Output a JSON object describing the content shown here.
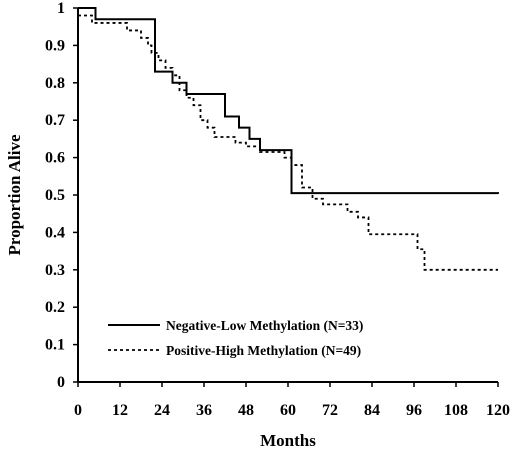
{
  "chart_data": {
    "type": "line",
    "xlabel": "Months",
    "ylabel": "Proportion Alive",
    "xlim": [
      0,
      120
    ],
    "ylim": [
      0,
      1
    ],
    "x_ticks": [
      0,
      12,
      24,
      36,
      48,
      60,
      72,
      84,
      96,
      108,
      120
    ],
    "y_ticks": [
      "0",
      "0.1",
      "0.2",
      "0.3",
      "0.4",
      "0.5",
      "0.6",
      "0.7",
      "0.8",
      "0.9",
      "1"
    ],
    "grid": false,
    "legend_position": "bottom-left",
    "series": [
      {
        "name": "Negative-Low Methylation (N=33)",
        "style": "solid",
        "color": "#000000",
        "step": true,
        "points": [
          [
            0,
            1.0
          ],
          [
            5,
            0.97
          ],
          [
            22,
            0.83
          ],
          [
            27,
            0.8
          ],
          [
            31,
            0.77
          ],
          [
            42,
            0.71
          ],
          [
            46,
            0.68
          ],
          [
            49,
            0.65
          ],
          [
            52,
            0.62
          ],
          [
            61,
            0.505
          ],
          [
            120,
            0.503
          ]
        ]
      },
      {
        "name": "Positive-High Methylation (N=49)",
        "style": "dotted",
        "color": "#000000",
        "step": true,
        "points": [
          [
            0,
            0.98
          ],
          [
            4,
            0.96
          ],
          [
            14,
            0.94
          ],
          [
            18,
            0.92
          ],
          [
            20,
            0.9
          ],
          [
            21,
            0.88
          ],
          [
            23,
            0.86
          ],
          [
            25,
            0.84
          ],
          [
            27,
            0.82
          ],
          [
            29,
            0.78
          ],
          [
            31,
            0.76
          ],
          [
            33,
            0.74
          ],
          [
            35,
            0.7
          ],
          [
            37,
            0.68
          ],
          [
            39,
            0.655
          ],
          [
            45,
            0.64
          ],
          [
            48,
            0.63
          ],
          [
            52,
            0.615
          ],
          [
            59,
            0.6
          ],
          [
            61,
            0.58
          ],
          [
            64,
            0.52
          ],
          [
            67,
            0.49
          ],
          [
            70,
            0.475
          ],
          [
            77,
            0.455
          ],
          [
            80,
            0.44
          ],
          [
            83,
            0.395
          ],
          [
            97,
            0.355
          ],
          [
            99,
            0.3
          ],
          [
            120,
            0.3
          ]
        ]
      }
    ]
  }
}
